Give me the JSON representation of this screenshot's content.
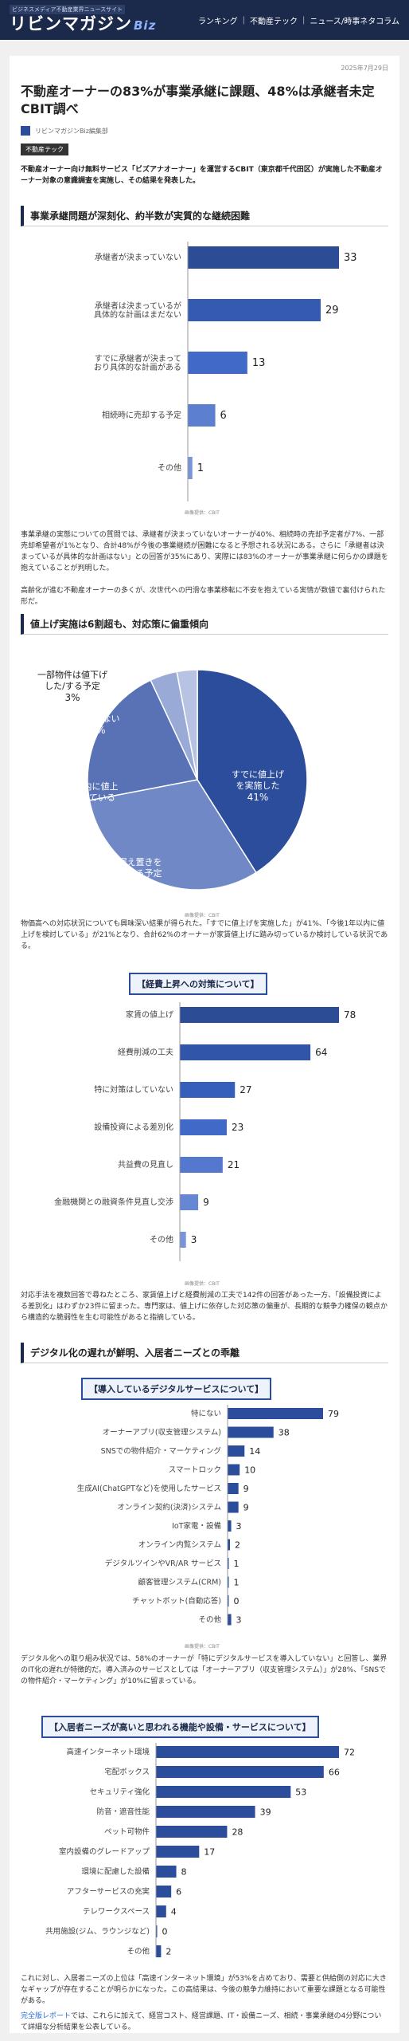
{
  "header": {
    "tagline": "ビジネスメディア不動産業界ニュースサイト",
    "logo_main": "リビンマガジン",
    "logo_sub": "Biz",
    "nav": [
      "ランキング",
      "不動産テック",
      "ニュース/時事ネタコラム"
    ]
  },
  "article": {
    "date": "2025年7月29日",
    "title": "不動産オーナーの83%が事業承継に課題、48%は承継者未定 CBIT調べ",
    "author": "リビンマガジンBiz編集部",
    "tag": "不動産テック",
    "lead": "不動産オーナー向け無料サービス「ビズアナオーナー」を運営するCBIT（東京都千代田区）が実施した不動産オーナー対象の意識調査を実施し、その結果を発表した。",
    "sections": [
      {
        "heading": "事業承継問題が深刻化、約半数が実質的な継続困難"
      },
      {
        "heading": "値上げ実施は6割超も、対応策に偏重傾向"
      },
      {
        "heading": "デジタル化の遅れが鮮明、入居者ニーズとの乖離"
      }
    ],
    "paragraphs": [
      "事業承継の実態についての質問では、承継者が決まっていないオーナーが40%、相続時の売却予定者が7%、一部売却希望者が1%となり、合計48%が今後の事業継続が困難になると予想される状況にある。さらに「承継者は決まっているが具体的な計画はない」との回答が35%にあり、実際には83%のオーナーが事業承継に何らかの課題を抱えていることが判明した。",
      "高齢化が進む不動産オーナーの多くが、次世代への円滑な事業移転に不安を抱えている実情が数値で裏付けられた形だ。",
      "物価高への対応状況についても興味深い結果が得られた。「すでに値上げを実施した」が41%、「今後1年以内に値上げを検討している」が21%となり、合計62%のオーナーが家賃値上げに踏み切っているか検討している状況である。",
      "対応手法を複数回答で尋ねたところ、家賃値上げと経費削減の工夫で142件の回答があった一方、「設備投資による差別化」はわずか23件に留まった。専門家は、値上げに依存した対応策の偏重が、長期的な競争力確保の観点から構造的な脆弱性を生む可能性があると指摘している。",
      "デジタル化への取り組み状況では、58%のオーナーが「特にデジタルサービスを導入していない」と回答し、業界のIT化の遅れが特徴的だ。導入済みのサービスとしては「オーナーアプリ（収支管理システム）」が28%、「SNSでの物件紹介・マーケティング」が10%に留まっている。",
      "これに対し、入居者ニーズの上位は「高速インターネット環境」が53%を占めており、需要と供給側の対応に大きなギャップが存在することが明らかになった。この高結果は、今後の競争力維持において重要な課題となる可能性がある。"
    ],
    "final_para_link": "完全版レポート",
    "final_para_rest": "では、これらに加えて、経営コスト、経営課題、IT・設備ニーズ、相続・事業承継の4分野について詳細な分析結果を公表している。",
    "source_label": "画像提供：CBIT"
  },
  "charts": {
    "succession": {
      "type": "bar",
      "categories": [
        "承継者が決まっていない",
        "承継者は決まっているが具体的な計画はまだない",
        "すでに承継者が決まっており具体的な計画がある",
        "相続時に売却する予定",
        "その他"
      ],
      "values": [
        33,
        29,
        13,
        6,
        1
      ],
      "max": 33
    },
    "pricing": {
      "type": "pie",
      "slices": [
        {
          "label": "すでに値上げを実施した",
          "value": 41,
          "color": "#2c4d9b"
        },
        {
          "label": "据え置きを続ける予定",
          "value": 31,
          "color": "#7089c6"
        },
        {
          "label": "今後1年以内に値上げを検討している",
          "value": 21,
          "color": "#5872b5"
        },
        {
          "label": "わからない",
          "value": 4,
          "color": "#9aaad6"
        },
        {
          "label": "一部物件は値下げした/する予定",
          "value": 3,
          "color": "#b8c3e3"
        }
      ]
    },
    "measures": {
      "type": "bar",
      "title": "【経費上昇への対策について】",
      "categories": [
        "家賃の値上げ",
        "経費削減の工夫",
        "特に対策はしていない",
        "設備投資による差別化",
        "共益費の見直し",
        "金融機関との融資条件見直し交渉",
        "その他"
      ],
      "values": [
        78,
        64,
        27,
        23,
        21,
        9,
        3
      ],
      "max": 78
    },
    "digital": {
      "type": "bar",
      "title": "【導入しているデジタルサービスについて】",
      "categories": [
        "特にない",
        "オーナーアプリ(収支管理システム)",
        "SNSでの物件紹介・マーケティング",
        "スマートロック",
        "生成AI(ChatGPTなど)を使用したサービス",
        "オンライン契約(決済)システム",
        "IoT家電・設備",
        "オンライン内覧システム",
        "デジタルツインやVR/AR サービス",
        "顧客管理システム(CRM)",
        "チャットボット(自動応答)",
        "その他"
      ],
      "values": [
        79,
        38,
        14,
        10,
        9,
        9,
        3,
        2,
        1,
        1,
        0,
        3
      ],
      "max": 79
    },
    "needs": {
      "type": "bar",
      "title": "【入居者ニーズが高いと思われる機能や設備・サービスについて】",
      "categories": [
        "高速インターネット環境",
        "宅配ボックス",
        "セキュリティ強化",
        "防音・遮音性能",
        "ペット可物件",
        "室内設備のグレードアップ",
        "環境に配慮した設備",
        "アフターサービスの充実",
        "テレワークスペース",
        "共用施設(ジム、ラウンジなど)",
        "その他"
      ],
      "values": [
        72,
        66,
        53,
        39,
        28,
        17,
        8,
        6,
        4,
        0,
        2
      ],
      "max": 72
    }
  }
}
